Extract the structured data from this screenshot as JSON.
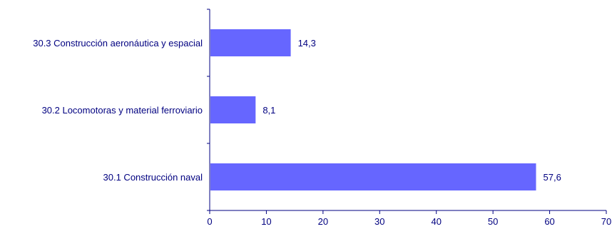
{
  "chart_data": {
    "type": "bar",
    "orientation": "horizontal",
    "categories": [
      "30.3 Construcción aeronáutica y espacial",
      "30.2 Locomotoras y material ferroviario",
      "30.1 Construcción naval"
    ],
    "values": [
      14.3,
      8.1,
      57.6
    ],
    "value_labels": [
      "14,3",
      "8,1",
      "57,6"
    ],
    "x_ticks": [
      "0",
      "10",
      "20",
      "30",
      "40",
      "50",
      "60",
      "70"
    ],
    "xlim": [
      0,
      70
    ],
    "grid": false,
    "legend": "none",
    "colors": {
      "bar": "#6666ff",
      "axis": "#000080",
      "text": "#000080"
    }
  }
}
